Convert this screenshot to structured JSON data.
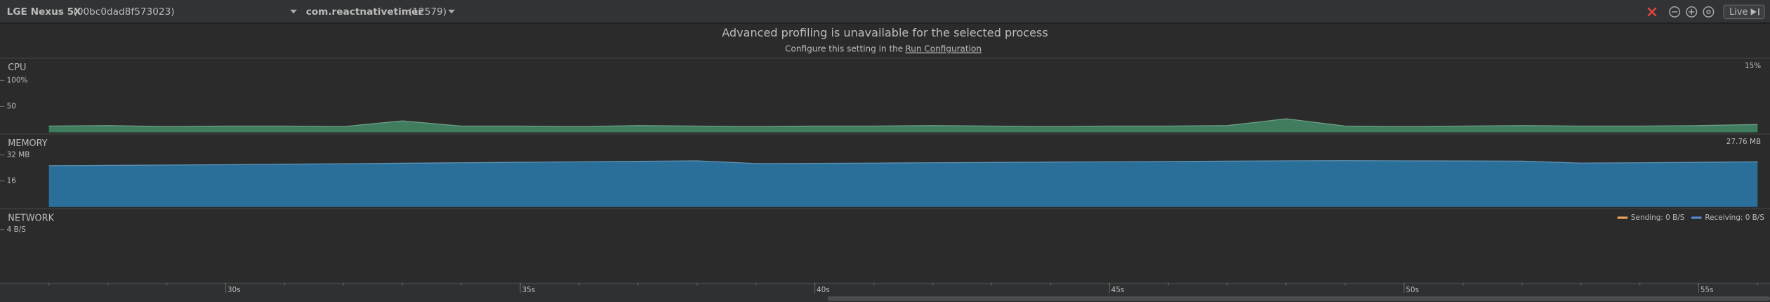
{
  "toolbar": {
    "device": "LGE Nexus 5X",
    "device_serial": "(00bc0dad8f573023)",
    "process": "com.reactnativetimer",
    "process_id": "(12579)",
    "live_button": "Live"
  },
  "banner": {
    "message": "Advanced profiling is unavailable for the selected process",
    "hint": "Configure this setting in the",
    "link": "Run Configuration"
  },
  "time_axis": {
    "xlim": [
      26.17,
      56.21
    ],
    "xticks": [
      {
        "value": 30,
        "label": "30s"
      },
      {
        "value": 35,
        "label": "35s"
      },
      {
        "value": 40,
        "label": "40s"
      },
      {
        "value": 45,
        "label": "45s"
      },
      {
        "value": 50,
        "label": "50s"
      },
      {
        "value": 55,
        "label": "55s"
      }
    ]
  },
  "chart_data": [
    {
      "type": "area",
      "title": "CPU",
      "current_label": "15%",
      "x": [
        27,
        28,
        29,
        30,
        31,
        32,
        33,
        34,
        35,
        36,
        37,
        38,
        39,
        40,
        41,
        42,
        43,
        44,
        45,
        46,
        47,
        48,
        49,
        50,
        51,
        52,
        53,
        54,
        55,
        56
      ],
      "series": [
        {
          "color": "#3f7d5e",
          "values": [
            12,
            13,
            11,
            12,
            12,
            11,
            22,
            12,
            12,
            11,
            13,
            12,
            11,
            12,
            12,
            13,
            12,
            11,
            12,
            12,
            13,
            26,
            12,
            11,
            12,
            13,
            12,
            12,
            13,
            15
          ]
        }
      ],
      "ylim": [
        0,
        100
      ],
      "yticks": [
        {
          "value": 100,
          "label": "100%"
        },
        50
      ]
    },
    {
      "type": "area",
      "title": "MEMORY",
      "current_label": "27.76 MB",
      "x": [
        27,
        28,
        29,
        30,
        31,
        32,
        33,
        34,
        35,
        36,
        37,
        38,
        39,
        40,
        41,
        42,
        43,
        44,
        45,
        46,
        47,
        48,
        49,
        50,
        51,
        52,
        53,
        54,
        55,
        56
      ],
      "series": [
        {
          "color": "#2a6f99",
          "values": [
            25.4,
            25.6,
            25.8,
            26.0,
            26.3,
            26.6,
            26.9,
            27.2,
            27.5,
            27.8,
            28.1,
            28.4,
            26.7,
            26.8,
            27.0,
            27.2,
            27.4,
            27.6,
            27.8,
            28.0,
            28.2,
            28.4,
            28.5,
            28.4,
            28.3,
            28.2,
            27.0,
            27.2,
            27.5,
            27.76
          ]
        }
      ],
      "ylim": [
        0,
        32
      ],
      "yticks": [
        {
          "value": 32,
          "label": "32 MB"
        },
        16
      ]
    },
    {
      "type": "area",
      "title": "NETWORK",
      "ylim": [
        0,
        4
      ],
      "yticks": [
        {
          "value": 4,
          "label": "4 B/S"
        }
      ],
      "legend": [
        {
          "label": "Sending: 0 B/S",
          "color": "#e8a35a"
        },
        {
          "label": "Receiving: 0 B/S",
          "color": "#5b86d6"
        }
      ]
    }
  ]
}
